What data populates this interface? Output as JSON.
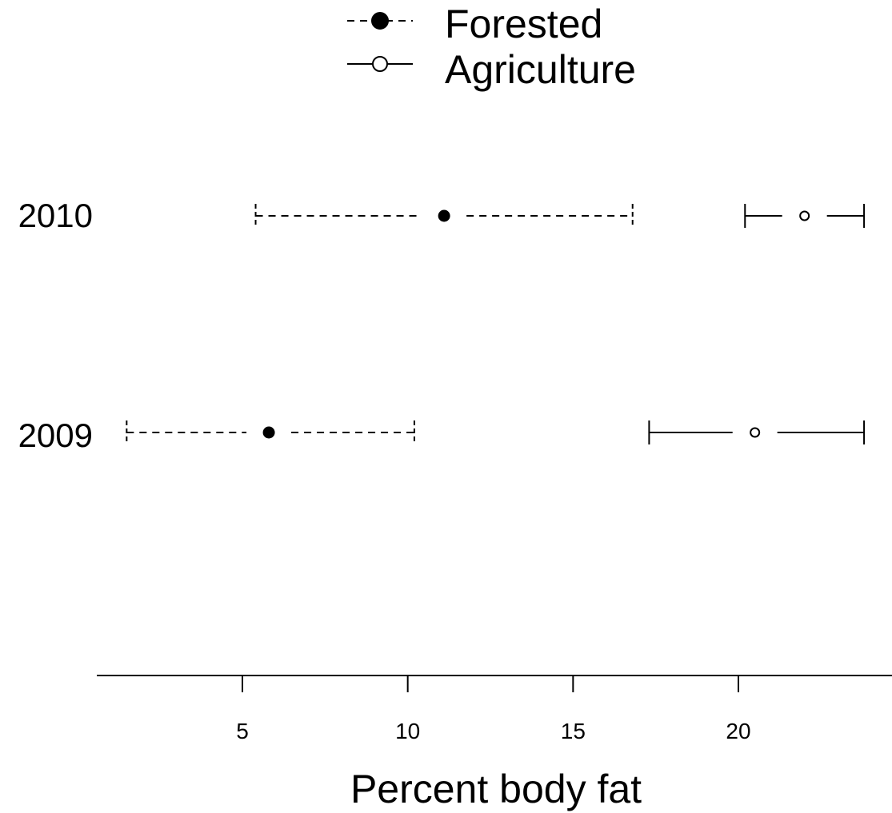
{
  "chart_data": {
    "type": "scatter",
    "subtype": "point-with-interval",
    "orientation": "horizontal",
    "title": "",
    "xlabel": "Percent body fat",
    "ylabel": "",
    "xlim": [
      0.5,
      24.5
    ],
    "xticks": [
      5,
      10,
      15,
      20
    ],
    "xtick_labels": [
      "5",
      "10",
      "15",
      "20"
    ],
    "categories": [
      "2010",
      "2009"
    ],
    "grid": false,
    "legend_position": "top-center",
    "series": [
      {
        "name": "Forested",
        "marker": "filled-circle",
        "line_style": "dashed",
        "color": "#000000",
        "points": [
          {
            "category": "2010",
            "value": 11.1,
            "lower": 5.4,
            "upper": 16.8
          },
          {
            "category": "2009",
            "value": 5.8,
            "lower": 1.5,
            "upper": 10.2
          }
        ]
      },
      {
        "name": "Agriculture",
        "marker": "open-circle",
        "line_style": "solid",
        "color": "#000000",
        "points": [
          {
            "category": "2010",
            "value": 22.0,
            "lower": 20.2,
            "upper": 23.8
          },
          {
            "category": "2009",
            "value": 20.5,
            "lower": 17.3,
            "upper": 23.8
          }
        ]
      }
    ]
  }
}
